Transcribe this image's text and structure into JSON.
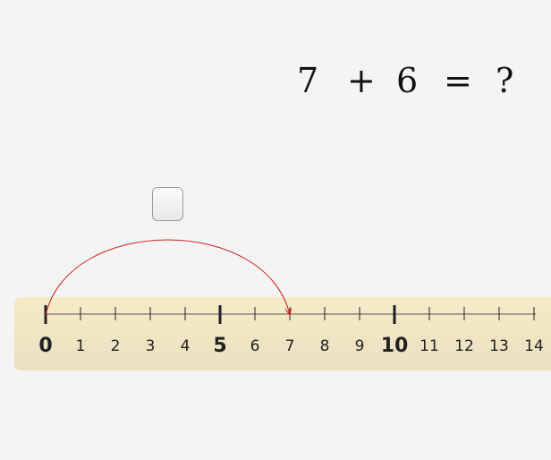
{
  "equation": {
    "operand_a": "7",
    "operator": "+",
    "operand_b": "6",
    "equals": "=",
    "unknown": "?"
  },
  "answer_box": {
    "value": ""
  },
  "number_line": {
    "start": 0,
    "end": 14,
    "major_every": 5,
    "labels": [
      "0",
      "1",
      "2",
      "3",
      "4",
      "5",
      "6",
      "7",
      "8",
      "9",
      "10",
      "11",
      "12",
      "13",
      "14"
    ]
  },
  "jump_arc": {
    "from": 0,
    "to": 7,
    "color": "#d41c1c"
  },
  "colors": {
    "background": "#f4f4f4",
    "ruler": "#f2e8c8",
    "tick": "#222222"
  }
}
